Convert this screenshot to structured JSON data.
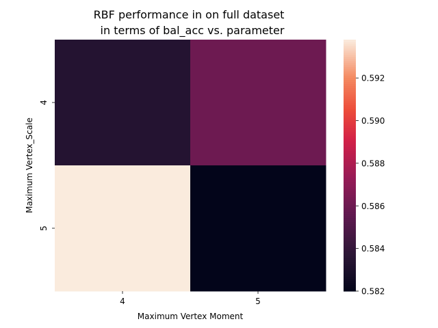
{
  "chart_data": {
    "type": "heatmap",
    "title_lines": [
      "RBF performance in on full dataset",
      "in terms of bal_acc vs. parameter"
    ],
    "xlabel": "Maximum Vertex Moment",
    "ylabel": "Maximum Vertex_Scale",
    "x_categories": [
      "4",
      "5"
    ],
    "y_categories": [
      "4",
      "5"
    ],
    "values": [
      [
        0.5834,
        0.586
      ],
      [
        0.5938,
        0.582
      ]
    ],
    "colorbar": {
      "min": 0.582,
      "max": 0.5938,
      "ticks": [
        "0.582",
        "0.584",
        "0.586",
        "0.588",
        "0.590",
        "0.592"
      ]
    }
  }
}
